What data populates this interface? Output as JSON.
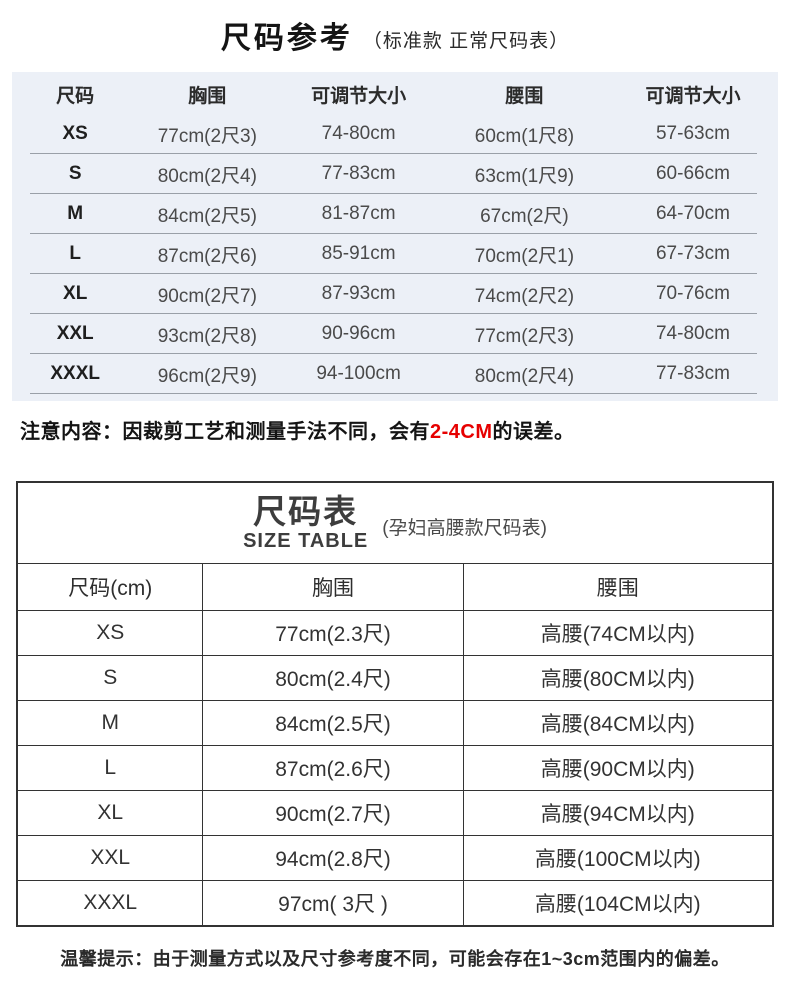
{
  "colors": {
    "highlight_red": "#e60000",
    "table1_background": "#ecf0f7",
    "table2_border": "#333333"
  },
  "header": {
    "title": "尺码参考",
    "subtitle": "（标准款 正常尺码表）"
  },
  "table1": {
    "headers": [
      "尺码",
      "胸围",
      "可调节大小",
      "腰围",
      "可调节大小"
    ],
    "rows": [
      {
        "size": "XS",
        "chest": "77cm(2尺3)",
        "chest_range": "74-80cm",
        "waist": "60cm(1尺8)",
        "waist_range": "57-63cm"
      },
      {
        "size": "S",
        "chest": "80cm(2尺4)",
        "chest_range": "77-83cm",
        "waist": "63cm(1尺9)",
        "waist_range": "60-66cm"
      },
      {
        "size": "M",
        "chest": "84cm(2尺5)",
        "chest_range": "81-87cm",
        "waist": "67cm(2尺)",
        "waist_range": "64-70cm"
      },
      {
        "size": "L",
        "chest": "87cm(2尺6)",
        "chest_range": "85-91cm",
        "waist": "70cm(2尺1)",
        "waist_range": "67-73cm"
      },
      {
        "size": "XL",
        "chest": "90cm(2尺7)",
        "chest_range": "87-93cm",
        "waist": "74cm(2尺2)",
        "waist_range": "70-76cm"
      },
      {
        "size": "XXL",
        "chest": "93cm(2尺8)",
        "chest_range": "90-96cm",
        "waist": "77cm(2尺3)",
        "waist_range": "74-80cm"
      },
      {
        "size": "XXXL",
        "chest": "96cm(2尺9)",
        "chest_range": "94-100cm",
        "waist": "80cm(2尺4)",
        "waist_range": "77-83cm"
      }
    ]
  },
  "note": {
    "prefix": "注意内容：因裁剪工艺和测量手法不同，会有",
    "highlight": "2-4CM",
    "suffix": "的误差。"
  },
  "table2": {
    "title": "尺码表",
    "title_en": "SIZE TABLE",
    "subtitle": "(孕妇高腰款尺码表)",
    "headers": [
      "尺码(cm)",
      "胸围",
      "腰围"
    ],
    "rows": [
      {
        "size": "XS",
        "chest": "77cm(2.3尺)",
        "waist": "高腰(74CM以内)"
      },
      {
        "size": "S",
        "chest": "80cm(2.4尺)",
        "waist": "高腰(80CM以内)"
      },
      {
        "size": "M",
        "chest": "84cm(2.5尺)",
        "waist": "高腰(84CM以内)"
      },
      {
        "size": "L",
        "chest": "87cm(2.6尺)",
        "waist": "高腰(90CM以内)"
      },
      {
        "size": "XL",
        "chest": "90cm(2.7尺)",
        "waist": "高腰(94CM以内)"
      },
      {
        "size": "XXL",
        "chest": "94cm(2.8尺)",
        "waist": "高腰(100CM以内)"
      },
      {
        "size": "XXXL",
        "chest": "97cm( 3尺 )",
        "waist": "高腰(104CM以内)"
      }
    ]
  },
  "footer": {
    "text": "温馨提示：由于测量方式以及尺寸参考度不同，可能会存在1~3cm范围内的偏差。"
  }
}
